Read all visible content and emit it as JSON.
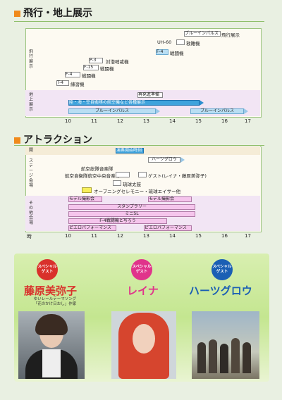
{
  "flight": {
    "title": "飛行・地上展示",
    "group_air": "飛行展示",
    "group_ground": "地上展示",
    "items_air": [
      {
        "label": "ブルーインパルス",
        "note": "飛行展示"
      },
      {
        "label": "UH-60",
        "note": "救難機"
      },
      {
        "label": "F-4",
        "note": "戦闘機"
      },
      {
        "label": "P-3",
        "note": "対潜哨戒機"
      },
      {
        "label": "F-15",
        "note": "戦闘機"
      },
      {
        "label": "F-4",
        "note": "戦闘機"
      },
      {
        "label": "T-4",
        "note": "練習機"
      }
    ],
    "items_ground": [
      "再発進準備",
      "陸・海・空自衛隊の航空機など各種展示",
      "ブルーインパルス",
      "ブルーインパルス"
    ]
  },
  "attraction": {
    "title": "アトラクション",
    "group_a": "開",
    "group_b": "ステージ会場",
    "group_c": "その他会場",
    "items_a": [
      "演奏開始時刻"
    ],
    "items_b": [
      "ハーツグロウ",
      "航空総隊音楽隊",
      "航空自衛隊航空中央音楽隊",
      "ゲスト(レイナ・藤原美弥子)",
      "琉球太鼓",
      "オープニングセレモニー・琉球エイサー他"
    ],
    "items_c": [
      "モデル撮影会",
      "モデル撮影会",
      "スタンプラリー",
      "ミニSL",
      "F-4戦闘機と写ろう",
      "ピエロパフォーマンス",
      "ピエロパフォーマンス"
    ]
  },
  "axis": {
    "start_label": "時",
    "hours": [
      "10",
      "11",
      "12",
      "13",
      "14",
      "15",
      "16",
      "17"
    ]
  },
  "guests": [
    {
      "badge": "スペシャルゲスト",
      "name": "藤原美弥子",
      "caption": "ゆいレールテーマソング「花のかけ日おし」作家",
      "color": "#d9312b"
    },
    {
      "badge": "スペシャルゲスト",
      "name": "レイナ",
      "caption": "",
      "color": "#e0348b"
    },
    {
      "badge": "スペシャルゲスト",
      "name": "ハーツグロウ",
      "caption": "",
      "color": "#1b5fb4"
    }
  ],
  "colors": {
    "accent": "#f08a1c",
    "blue_bar": "#3fa3dc",
    "pink_bar": "#f5c5ec"
  }
}
